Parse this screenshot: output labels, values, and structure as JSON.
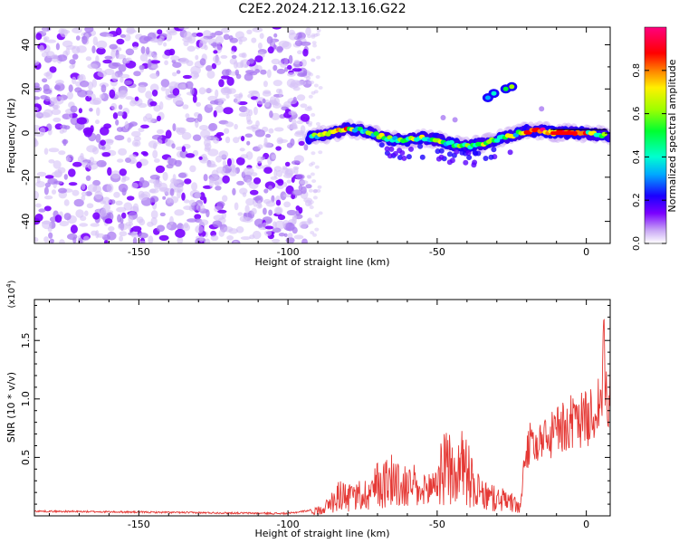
{
  "title": "C2E2.2024.212.13.16.G22",
  "chart_data": [
    {
      "type": "heatmap",
      "xlabel": "Height of straight line (km)",
      "ylabel": "Frequency (Hz)",
      "xlim": [
        -185,
        8
      ],
      "ylim": [
        -50,
        48
      ],
      "xticks": [
        -150,
        -100,
        -50,
        0
      ],
      "yticks": [
        -40,
        -20,
        0,
        20,
        40
      ],
      "colorbar": {
        "label": "Normalized spectral amplitude",
        "range": [
          0,
          1
        ],
        "ticks": [
          "0.0",
          "0.2",
          "0.4",
          "0.6",
          "0.8"
        ]
      },
      "features": {
        "noise_region_x": [
          -185,
          -93
        ],
        "trace": [
          {
            "x": -93,
            "y": -2
          },
          {
            "x": -85,
            "y": 0
          },
          {
            "x": -80,
            "y": 2
          },
          {
            "x": -75,
            "y": 1
          },
          {
            "x": -70,
            "y": -1
          },
          {
            "x": -65,
            "y": -3
          },
          {
            "x": -60,
            "y": -3
          },
          {
            "x": -55,
            "y": -2
          },
          {
            "x": -50,
            "y": -3
          },
          {
            "x": -45,
            "y": -5
          },
          {
            "x": -40,
            "y": -6
          },
          {
            "x": -35,
            "y": -5
          },
          {
            "x": -30,
            "y": -3
          },
          {
            "x": -25,
            "y": -1
          },
          {
            "x": -20,
            "y": 1
          },
          {
            "x": -15,
            "y": 1
          },
          {
            "x": -10,
            "y": 0
          },
          {
            "x": -5,
            "y": 0
          },
          {
            "x": 0,
            "y": 0
          },
          {
            "x": 5,
            "y": -1
          }
        ],
        "secondary_blob": [
          {
            "x": -33,
            "y": 16
          },
          {
            "x": -31,
            "y": 18
          },
          {
            "x": -27,
            "y": 20
          },
          {
            "x": -25,
            "y": 21
          }
        ]
      }
    },
    {
      "type": "line",
      "xlabel": "Height of straight line (km)",
      "ylabel": "SNR (10 * v/v)",
      "yexponent_label": "(x10",
      "yexponent_power": "4",
      "yexponent_close": ")",
      "xlim": [
        -185,
        8
      ],
      "ylim": [
        0,
        1.85
      ],
      "xticks": [
        -150,
        -100,
        -50,
        0
      ],
      "yticks": [
        0.5,
        1.0,
        1.5
      ],
      "ytick_labels": [
        "0.5",
        "1.0",
        "1.5"
      ],
      "color": "#e53935",
      "envelope": [
        {
          "x": -185,
          "y": 0.04
        },
        {
          "x": -100,
          "y": 0.02
        },
        {
          "x": -92,
          "y": 0.05
        },
        {
          "x": -88,
          "y": 0.12
        },
        {
          "x": -85,
          "y": 0.2
        },
        {
          "x": -82,
          "y": 0.35
        },
        {
          "x": -80,
          "y": 0.25
        },
        {
          "x": -75,
          "y": 0.3
        },
        {
          "x": -70,
          "y": 0.45
        },
        {
          "x": -65,
          "y": 0.55
        },
        {
          "x": -62,
          "y": 0.4
        },
        {
          "x": -58,
          "y": 0.45
        },
        {
          "x": -55,
          "y": 0.3
        },
        {
          "x": -50,
          "y": 0.55
        },
        {
          "x": -47,
          "y": 0.75
        },
        {
          "x": -44,
          "y": 0.55
        },
        {
          "x": -41,
          "y": 0.8
        },
        {
          "x": -38,
          "y": 0.45
        },
        {
          "x": -35,
          "y": 0.3
        },
        {
          "x": -30,
          "y": 0.25
        },
        {
          "x": -25,
          "y": 0.2
        },
        {
          "x": -22,
          "y": 0.1
        },
        {
          "x": -21,
          "y": 0.55
        },
        {
          "x": -19,
          "y": 0.8
        },
        {
          "x": -15,
          "y": 0.75
        },
        {
          "x": -10,
          "y": 0.95
        },
        {
          "x": -5,
          "y": 1.0
        },
        {
          "x": -2,
          "y": 1.05
        },
        {
          "x": 2,
          "y": 1.1
        },
        {
          "x": 5,
          "y": 1.3
        },
        {
          "x": 6,
          "y": 1.8
        },
        {
          "x": 7,
          "y": 1.0
        },
        {
          "x": 8,
          "y": 1.5
        }
      ]
    }
  ]
}
